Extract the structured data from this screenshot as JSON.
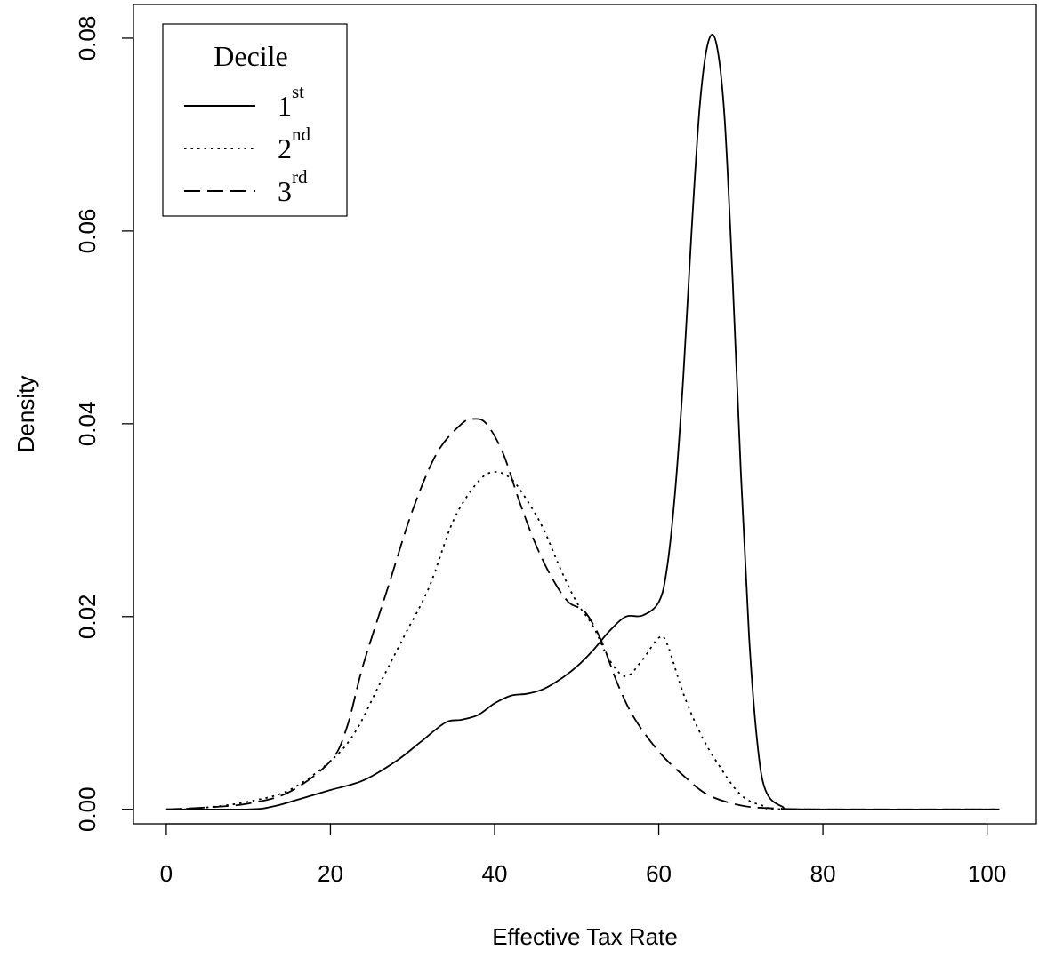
{
  "chart_data": {
    "type": "line",
    "title": "",
    "xlabel": "Effective Tax Rate",
    "ylabel": "Density",
    "xlim": [
      -4,
      106
    ],
    "ylim": [
      -0.0015,
      0.0835
    ],
    "xticks": [
      0,
      20,
      40,
      60,
      80,
      100
    ],
    "xtick_labels": [
      "0",
      "20",
      "40",
      "60",
      "80",
      "100"
    ],
    "yticks": [
      0.0,
      0.02,
      0.04,
      0.06,
      0.08
    ],
    "ytick_labels": [
      "0.00",
      "0.02",
      "0.04",
      "0.06",
      "0.08"
    ],
    "grid": false,
    "legend": {
      "title": "Decile",
      "position": "top-left",
      "entries": [
        {
          "base": "1",
          "sup": "st",
          "style": "solid"
        },
        {
          "base": "2",
          "sup": "nd",
          "style": "dotted"
        },
        {
          "base": "3",
          "sup": "rd",
          "style": "dashed"
        }
      ]
    },
    "series": [
      {
        "style": "solid",
        "points": [
          [
            0,
            0
          ],
          [
            10,
            0
          ],
          [
            13,
            0.0003
          ],
          [
            16,
            0.001
          ],
          [
            20,
            0.002
          ],
          [
            24,
            0.003
          ],
          [
            28,
            0.005
          ],
          [
            31,
            0.007
          ],
          [
            34,
            0.009
          ],
          [
            36,
            0.0093
          ],
          [
            38,
            0.0098
          ],
          [
            40,
            0.011
          ],
          [
            42,
            0.0118
          ],
          [
            44,
            0.012
          ],
          [
            46,
            0.0125
          ],
          [
            48,
            0.0135
          ],
          [
            50,
            0.0148
          ],
          [
            52,
            0.0165
          ],
          [
            54,
            0.0185
          ],
          [
            56,
            0.02
          ],
          [
            58,
            0.0201
          ],
          [
            60,
            0.0215
          ],
          [
            61,
            0.025
          ],
          [
            62,
            0.033
          ],
          [
            63,
            0.045
          ],
          [
            64,
            0.06
          ],
          [
            65,
            0.073
          ],
          [
            66,
            0.0795
          ],
          [
            67,
            0.0795
          ],
          [
            68,
            0.072
          ],
          [
            69,
            0.055
          ],
          [
            70,
            0.035
          ],
          [
            71,
            0.018
          ],
          [
            72,
            0.007
          ],
          [
            73,
            0.002
          ],
          [
            75,
            0.0003
          ],
          [
            78,
            0
          ],
          [
            101,
            0
          ]
        ]
      },
      {
        "style": "dotted",
        "points": [
          [
            0,
            0
          ],
          [
            5,
            0.0002
          ],
          [
            10,
            0.0008
          ],
          [
            15,
            0.002
          ],
          [
            20,
            0.005
          ],
          [
            23,
            0.008
          ],
          [
            26,
            0.013
          ],
          [
            29,
            0.018
          ],
          [
            32,
            0.023
          ],
          [
            35,
            0.03
          ],
          [
            38,
            0.034
          ],
          [
            40,
            0.035
          ],
          [
            42,
            0.0343
          ],
          [
            44,
            0.032
          ],
          [
            46,
            0.029
          ],
          [
            48,
            0.025
          ],
          [
            50,
            0.0215
          ],
          [
            52,
            0.019
          ],
          [
            54,
            0.0155
          ],
          [
            56,
            0.0138
          ],
          [
            58,
            0.0155
          ],
          [
            60,
            0.0178
          ],
          [
            61,
            0.0172
          ],
          [
            63,
            0.012
          ],
          [
            65,
            0.008
          ],
          [
            67,
            0.005
          ],
          [
            70,
            0.0015
          ],
          [
            73,
            0.0003
          ],
          [
            76,
            0
          ],
          [
            101,
            0
          ]
        ]
      },
      {
        "style": "dashed",
        "points": [
          [
            0,
            0
          ],
          [
            5,
            0.0002
          ],
          [
            10,
            0.0006
          ],
          [
            15,
            0.0018
          ],
          [
            20,
            0.005
          ],
          [
            22,
            0.0085
          ],
          [
            24,
            0.015
          ],
          [
            27,
            0.023
          ],
          [
            30,
            0.031
          ],
          [
            33,
            0.037
          ],
          [
            36,
            0.04
          ],
          [
            37.5,
            0.0405
          ],
          [
            39,
            0.04
          ],
          [
            41,
            0.037
          ],
          [
            43,
            0.032
          ],
          [
            45,
            0.0275
          ],
          [
            47,
            0.024
          ],
          [
            49,
            0.0215
          ],
          [
            51,
            0.0205
          ],
          [
            53,
            0.0175
          ],
          [
            55,
            0.013
          ],
          [
            57,
            0.0095
          ],
          [
            60,
            0.006
          ],
          [
            63,
            0.0035
          ],
          [
            66,
            0.0015
          ],
          [
            70,
            0.0004
          ],
          [
            74,
            0.0001
          ],
          [
            80,
            0
          ],
          [
            101.5,
            0
          ]
        ]
      }
    ]
  }
}
